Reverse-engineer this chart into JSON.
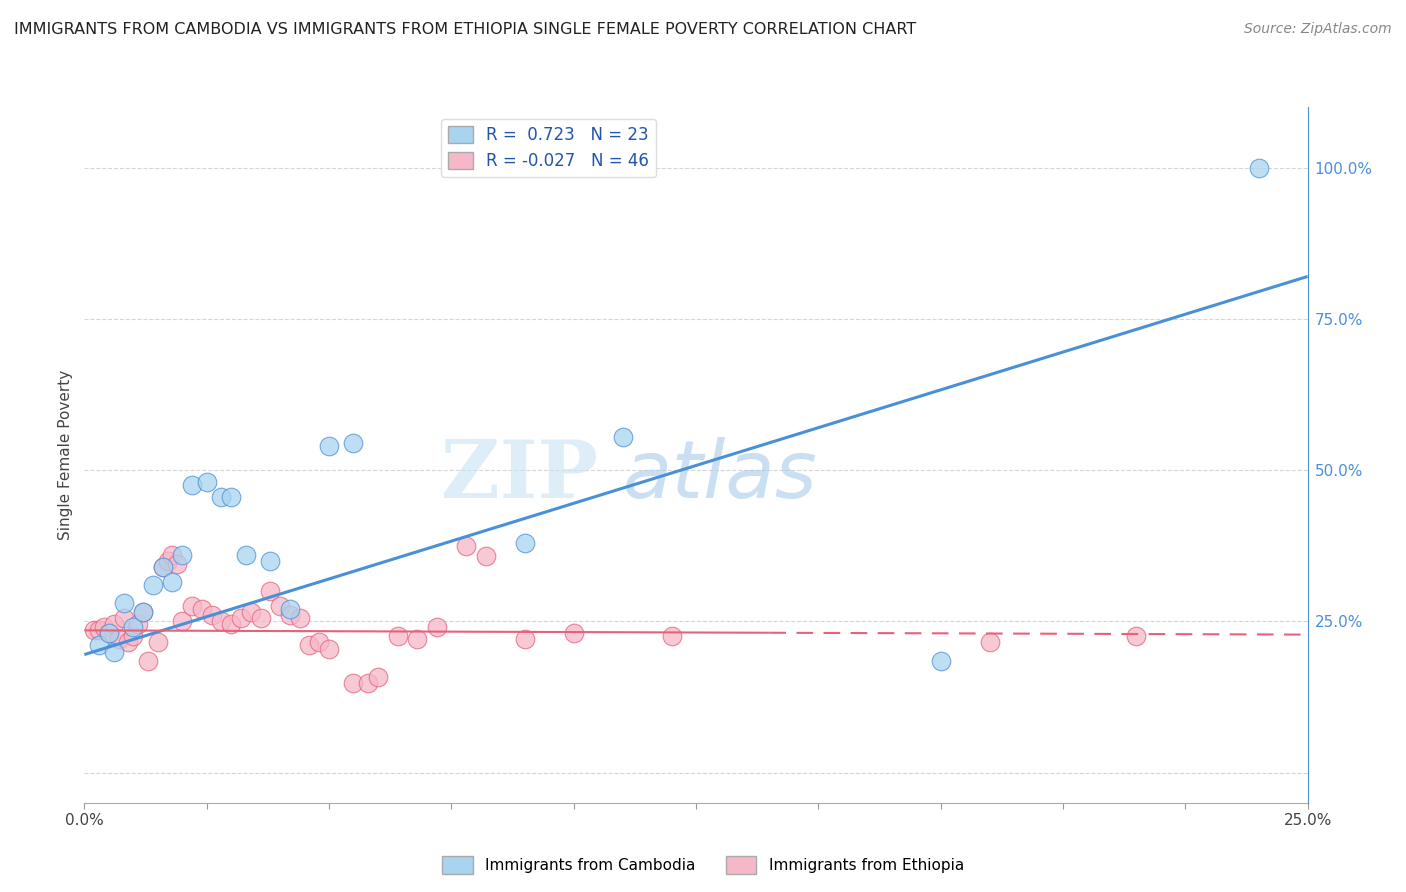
{
  "title": "IMMIGRANTS FROM CAMBODIA VS IMMIGRANTS FROM ETHIOPIA SINGLE FEMALE POVERTY CORRELATION CHART",
  "source": "Source: ZipAtlas.com",
  "ylabel": "Single Female Poverty",
  "xlim": [
    0.0,
    0.25
  ],
  "ylim": [
    -0.05,
    1.1
  ],
  "plot_ylim": [
    -0.05,
    1.1
  ],
  "xticks": [
    0.0,
    0.025,
    0.05,
    0.075,
    0.1,
    0.125,
    0.15,
    0.175,
    0.2,
    0.225,
    0.25
  ],
  "xtick_labels": [
    "0.0%",
    "",
    "",
    "",
    "",
    "",
    "",
    "",
    "",
    "",
    "25.0%"
  ],
  "yticks_right": [
    0.0,
    0.25,
    0.5,
    0.75,
    1.0
  ],
  "ytick_labels_right": [
    "",
    "25.0%",
    "50.0%",
    "75.0%",
    "100.0%"
  ],
  "color_cambodia": "#A8D4F0",
  "color_ethiopia": "#F5B8C8",
  "line_color_cambodia": "#4A90D9",
  "line_color_ethiopia": "#E8607A",
  "background_color": "#FFFFFF",
  "watermark_text": "ZIP",
  "watermark_text2": "atlas",
  "cambodia_x": [
    0.003,
    0.005,
    0.006,
    0.008,
    0.01,
    0.012,
    0.014,
    0.016,
    0.018,
    0.02,
    0.022,
    0.025,
    0.028,
    0.03,
    0.033,
    0.038,
    0.042,
    0.05,
    0.055,
    0.09,
    0.11,
    0.175,
    0.24
  ],
  "cambodia_y": [
    0.21,
    0.23,
    0.2,
    0.28,
    0.24,
    0.265,
    0.31,
    0.34,
    0.315,
    0.36,
    0.475,
    0.48,
    0.455,
    0.455,
    0.36,
    0.35,
    0.27,
    0.54,
    0.545,
    0.38,
    0.555,
    0.185,
    1.0
  ],
  "ethiopia_x": [
    0.002,
    0.003,
    0.004,
    0.005,
    0.006,
    0.007,
    0.008,
    0.009,
    0.01,
    0.011,
    0.012,
    0.013,
    0.015,
    0.016,
    0.017,
    0.018,
    0.019,
    0.02,
    0.022,
    0.024,
    0.026,
    0.028,
    0.03,
    0.032,
    0.034,
    0.036,
    0.038,
    0.04,
    0.042,
    0.044,
    0.046,
    0.048,
    0.05,
    0.055,
    0.058,
    0.06,
    0.064,
    0.068,
    0.072,
    0.078,
    0.082,
    0.09,
    0.1,
    0.12,
    0.185,
    0.215
  ],
  "ethiopia_y": [
    0.235,
    0.235,
    0.24,
    0.23,
    0.245,
    0.22,
    0.255,
    0.215,
    0.225,
    0.245,
    0.265,
    0.185,
    0.215,
    0.34,
    0.35,
    0.36,
    0.345,
    0.25,
    0.275,
    0.27,
    0.26,
    0.25,
    0.245,
    0.255,
    0.265,
    0.255,
    0.3,
    0.275,
    0.26,
    0.255,
    0.21,
    0.215,
    0.205,
    0.148,
    0.148,
    0.158,
    0.225,
    0.22,
    0.24,
    0.375,
    0.358,
    0.22,
    0.23,
    0.225,
    0.215,
    0.225
  ],
  "cam_line_x0": 0.0,
  "cam_line_y0": 0.195,
  "cam_line_x1": 0.25,
  "cam_line_y1": 0.82,
  "eth_line_x0": 0.0,
  "eth_line_y0": 0.235,
  "eth_line_x1": 0.25,
  "eth_line_y1": 0.228
}
